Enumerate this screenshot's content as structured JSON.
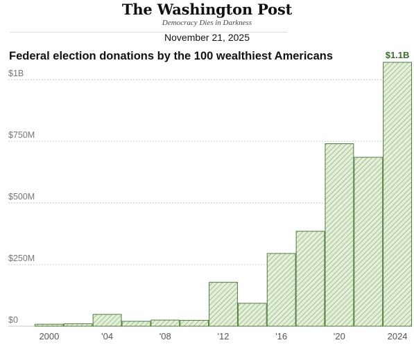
{
  "header": {
    "logo": "The Washington Post",
    "tagline": "Democracy Dies in Darkness",
    "date": "November 21, 2025"
  },
  "colors": {
    "bar_fill": "#e4efd9",
    "bar_hatch": "#84a866",
    "bar_stroke": "#4f7a3c",
    "grid": "#c8c8c8",
    "annotation": "#3c6b2c"
  },
  "chart_data": {
    "type": "bar",
    "title": "Federal election donations by the 100 wealthiest Americans",
    "xlabel": "",
    "ylabel": "",
    "categories": [
      "2000",
      "'02",
      "'04",
      "'06",
      "'08",
      "'10",
      "'12",
      "'14",
      "'16",
      "'18",
      "'20",
      "'22",
      "2024"
    ],
    "values": [
      8000000,
      10000000,
      48000000,
      20000000,
      25000000,
      24000000,
      178000000,
      93000000,
      295000000,
      385000000,
      740000000,
      685000000,
      1070000000
    ],
    "shown_x_ticks": [
      "2000",
      "'04",
      "'08",
      "'12",
      "'16",
      "'20",
      "2024"
    ],
    "y_ticks": [
      {
        "value": 0,
        "label": "$0"
      },
      {
        "value": 250000000,
        "label": "$250M"
      },
      {
        "value": 500000000,
        "label": "$500M"
      },
      {
        "value": 750000000,
        "label": "$750M"
      },
      {
        "value": 1000000000,
        "label": "$1B"
      }
    ],
    "ylim": [
      0,
      1070000000
    ],
    "grid": true,
    "pattern": "diagonal-hatch",
    "annotation": {
      "category": "2024",
      "text": "$1.1B"
    }
  }
}
